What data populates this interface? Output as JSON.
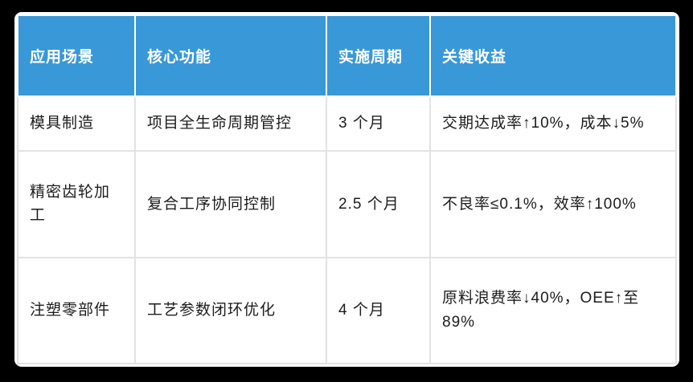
{
  "table": {
    "headers": [
      "应用场景",
      "核心功能",
      "实施周期",
      "关键收益"
    ],
    "rows": [
      [
        "模具制造",
        "项目全生命周期管控",
        "3 个月",
        "交期达成率↑10%，成本↓5%"
      ],
      [
        "精密齿轮加工",
        "复合工序协同控制",
        "2.5 个月",
        "不良率≤0.1%，效率↑100%"
      ],
      [
        "注塑零部件",
        "工艺参数闭环优化",
        "4 个月",
        "原料浪费率↓40%，OEE↑至89%"
      ]
    ]
  },
  "colors": {
    "page_background": "#000000",
    "card_background": "#ffffff",
    "header_background": "#3898d8",
    "header_text": "#ffffff",
    "body_text": "#1c1c1c",
    "grid_line": "#e3e3e3"
  }
}
